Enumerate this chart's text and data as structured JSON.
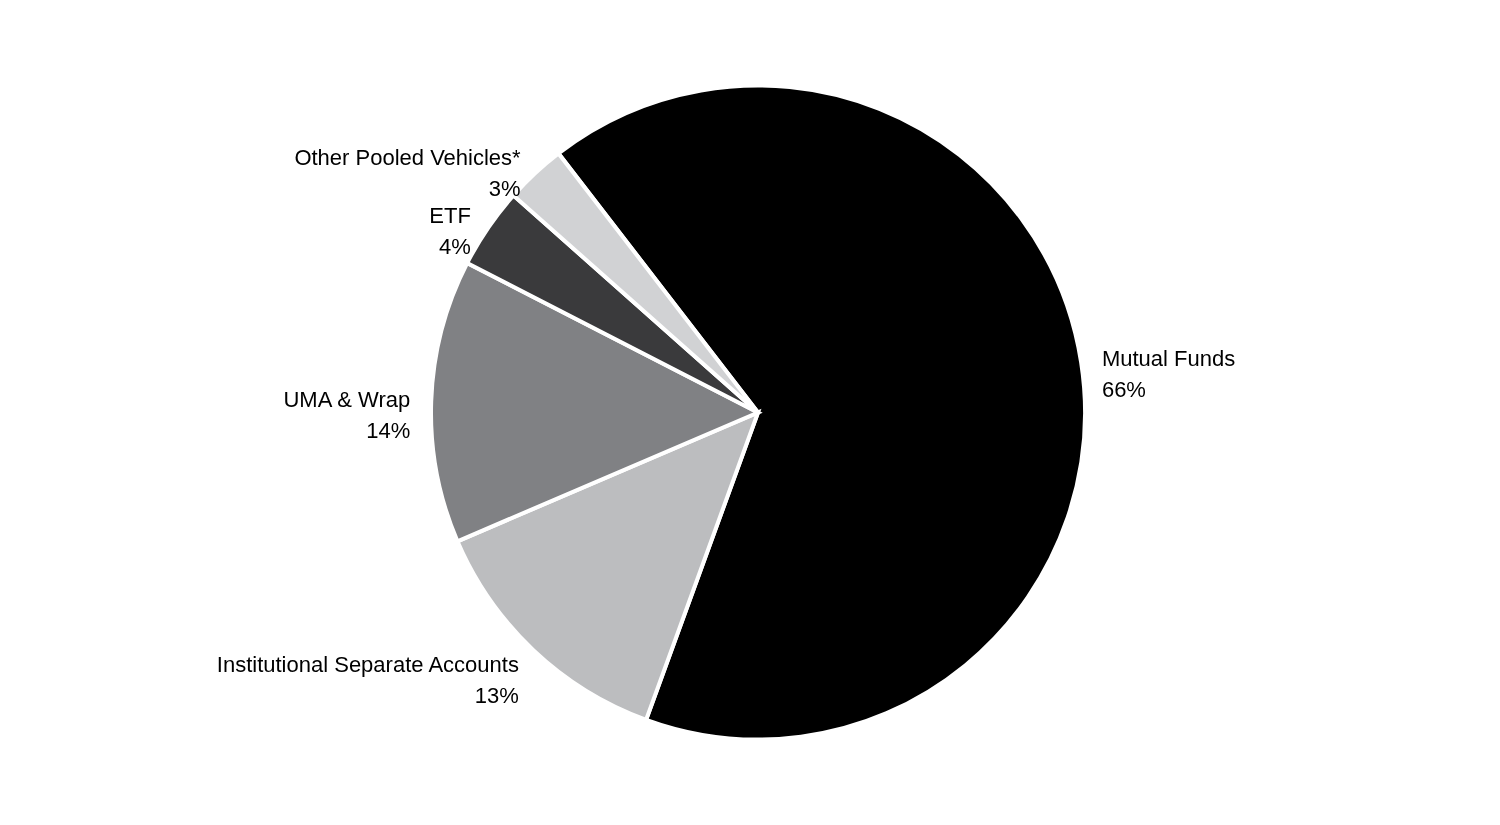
{
  "chart_data": {
    "type": "pie",
    "categories": [
      "Mutual Funds",
      "Institutional Separate Accounts",
      "UMA & Wrap",
      "ETF",
      "Other Pooled Vehicles*"
    ],
    "values": [
      66,
      13,
      14,
      4,
      3
    ],
    "value_labels": [
      "66%",
      "13%",
      "14%",
      "4%",
      "3%"
    ],
    "colors": [
      "#000000",
      "#bcbdbf",
      "#808184",
      "#3a3a3c",
      "#d1d2d4"
    ]
  }
}
